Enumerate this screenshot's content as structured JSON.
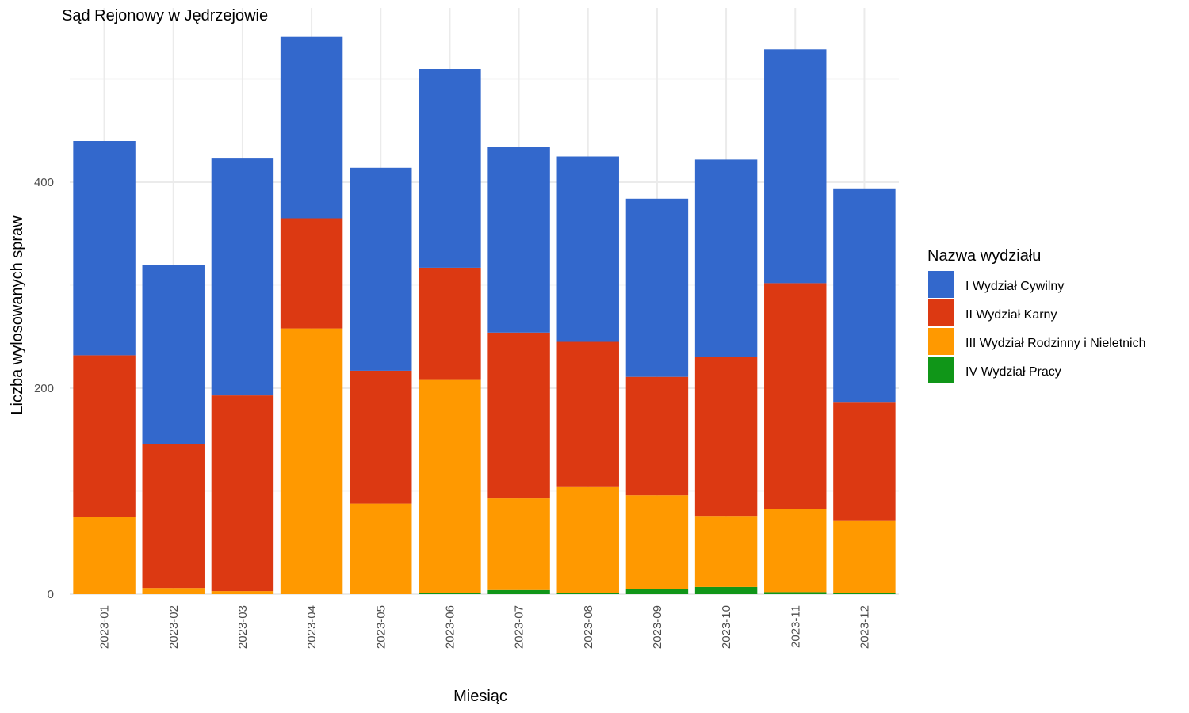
{
  "chart_data": {
    "type": "bar",
    "stacked": true,
    "title": "Sąd Rejonowy w Jędrzejowie",
    "xlabel": "Miesiąc",
    "ylabel": "Liczba wylosowanych spraw",
    "ylim": [
      0,
      545
    ],
    "yticks": [
      0,
      200,
      400
    ],
    "grid": true,
    "legend_position": "right",
    "legend_title": "Nazwa wydziału",
    "categories": [
      "2023-01",
      "2023-02",
      "2023-03",
      "2023-04",
      "2023-05",
      "2023-06",
      "2023-07",
      "2023-08",
      "2023-09",
      "2023-10",
      "2023-11",
      "2023-12"
    ],
    "series": [
      {
        "name": "I Wydział Cywilny",
        "color": "#3368cc",
        "values": [
          208,
          174,
          230,
          176,
          197,
          193,
          180,
          180,
          173,
          192,
          227,
          208
        ]
      },
      {
        "name": "II Wydział Karny",
        "color": "#dc3912",
        "values": [
          157,
          140,
          190,
          107,
          129,
          109,
          161,
          141,
          115,
          154,
          219,
          115
        ]
      },
      {
        "name": "III Wydział Rodzinny i Nieletnich",
        "color": "#ff9900",
        "values": [
          75,
          6,
          3,
          258,
          88,
          207,
          89,
          103,
          91,
          69,
          81,
          70
        ]
      },
      {
        "name": "IV Wydział Pracy",
        "color": "#109618",
        "values": [
          0,
          0,
          0,
          0,
          0,
          1,
          4,
          1,
          5,
          7,
          2,
          1
        ]
      }
    ]
  }
}
